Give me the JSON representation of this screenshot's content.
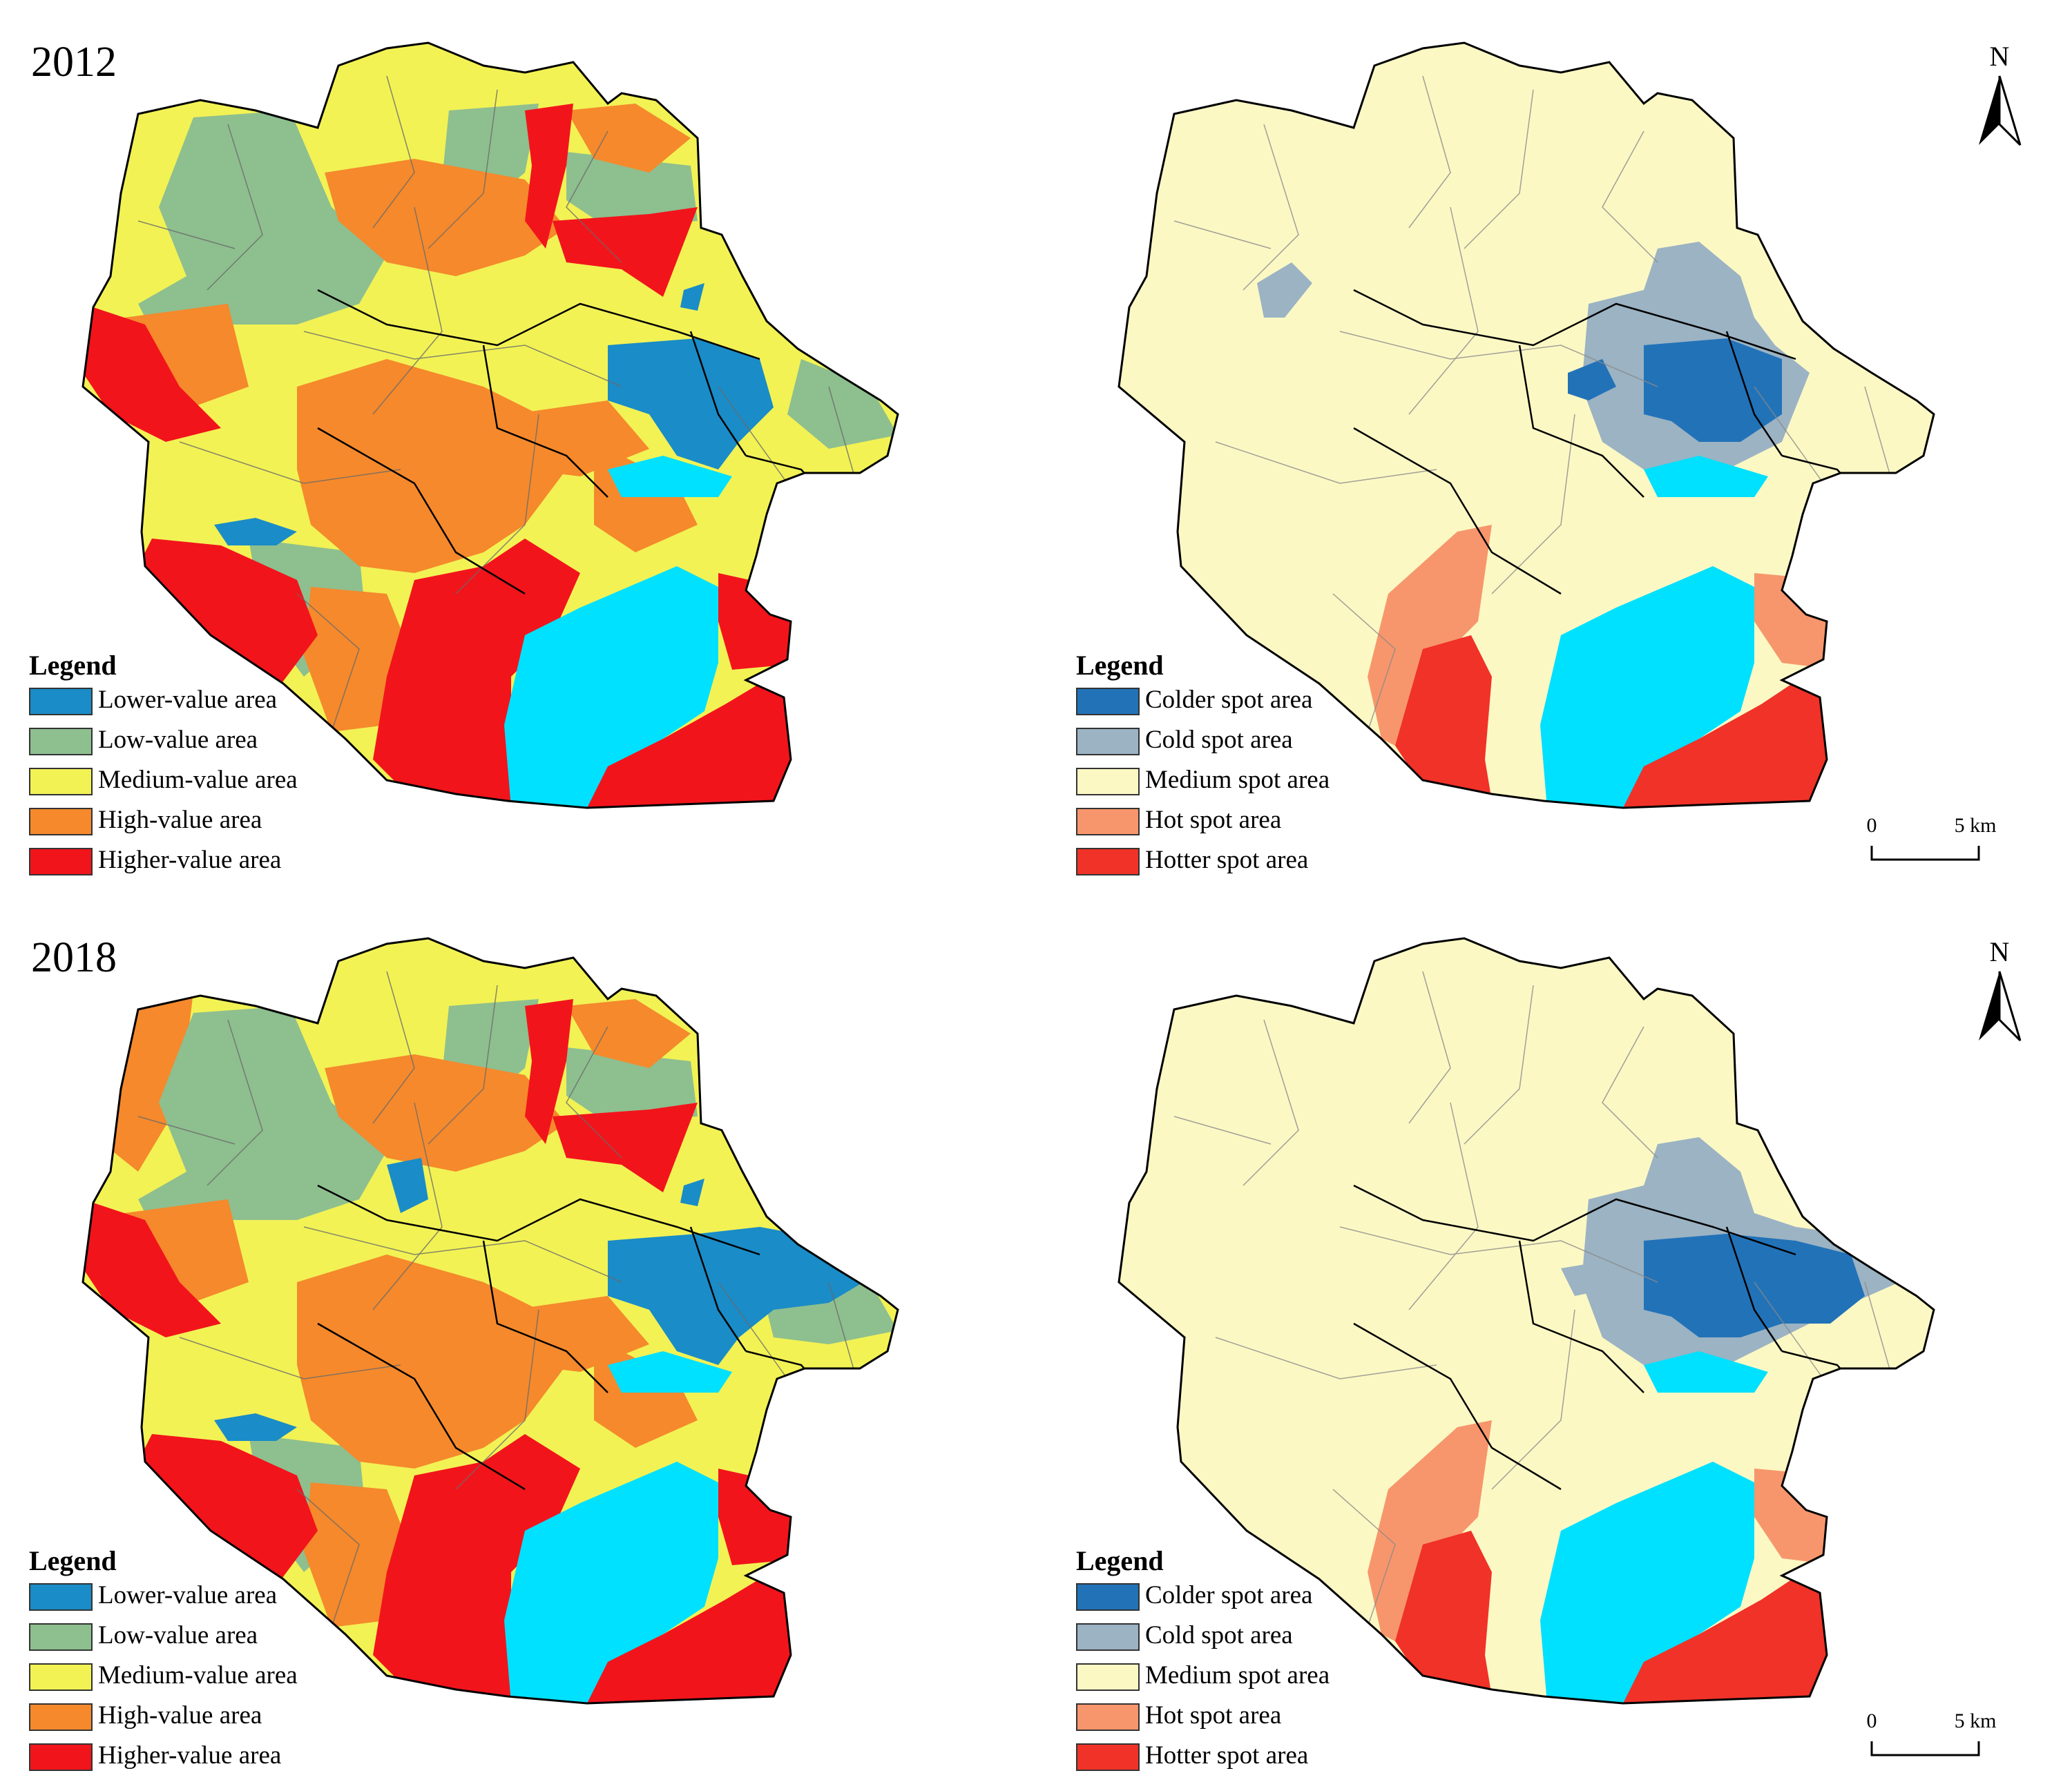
{
  "figure": {
    "years": [
      "2012",
      "2018"
    ],
    "north_label": "N",
    "scale_bar": {
      "start": "0",
      "end": "5 km"
    }
  },
  "value_legend": {
    "title": "Legend",
    "items": [
      {
        "label": "Lower-value area",
        "color": "#1a8cc7"
      },
      {
        "label": "Low-value area",
        "color": "#8ebf8f"
      },
      {
        "label": "Medium-value area",
        "color": "#f2f255"
      },
      {
        "label": "High-value area",
        "color": "#f5892c"
      },
      {
        "label": "Higher-value area",
        "color": "#f2141b"
      }
    ]
  },
  "spot_legend": {
    "title": "Legend",
    "items": [
      {
        "label": "Colder spot area",
        "color": "#2272b8"
      },
      {
        "label": "Cold spot area",
        "color": "#9bb3c3"
      },
      {
        "label": "Medium spot area",
        "color": "#fcf8c4"
      },
      {
        "label": "Hot spot area",
        "color": "#f7966c"
      },
      {
        "label": "Hotter spot area",
        "color": "#f03228"
      }
    ]
  },
  "water_color": "#00e0ff"
}
